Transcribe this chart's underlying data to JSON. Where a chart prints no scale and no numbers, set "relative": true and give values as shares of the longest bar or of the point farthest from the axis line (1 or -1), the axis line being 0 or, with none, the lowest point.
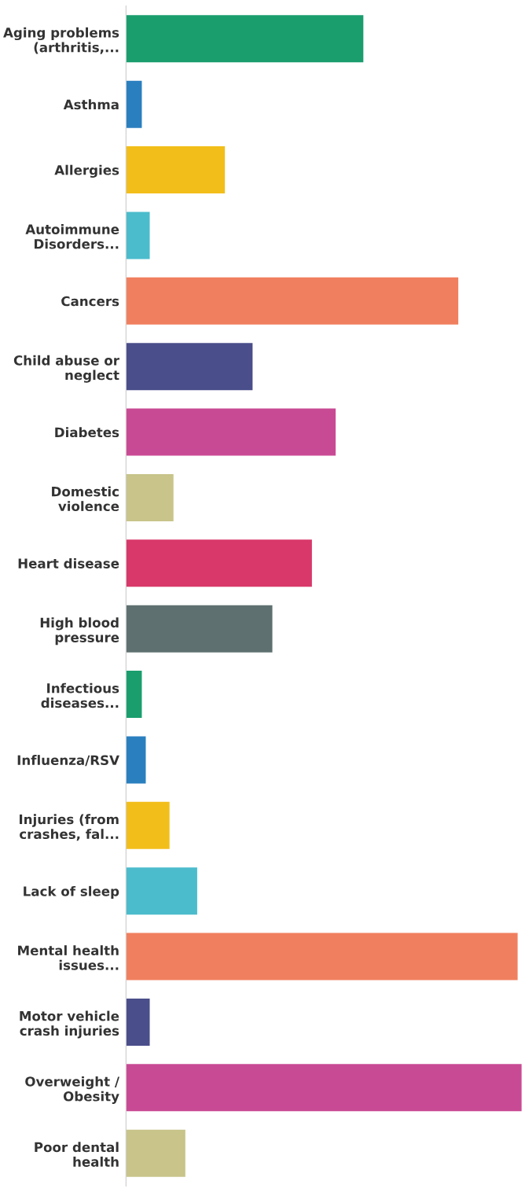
{
  "chart_data": {
    "type": "bar",
    "orientation": "horizontal",
    "relative": true,
    "categories": [
      "Aging problems\n(arthritis,...",
      "Asthma",
      "Allergies",
      "Autoimmune\nDisorders...",
      "Cancers",
      "Child abuse or\nneglect",
      "Diabetes",
      "Domestic\nviolence",
      "Heart disease",
      "High blood\npressure",
      "Infectious\ndiseases...",
      "Influenza/RSV",
      "Injuries (from\ncrashes, fal...",
      "Lack of sleep",
      "Mental health\nissues...",
      "Motor vehicle\ncrash injuries",
      "Overweight /\nObesity",
      "Poor dental\nhealth"
    ],
    "values": [
      0.6,
      0.04,
      0.25,
      0.06,
      0.84,
      0.32,
      0.53,
      0.12,
      0.47,
      0.37,
      0.04,
      0.05,
      0.11,
      0.18,
      0.99,
      0.06,
      1,
      0.15
    ],
    "colors": [
      "#1a9e6e",
      "#2a7fbf",
      "#f2be1a",
      "#4bbccc",
      "#f07f5f",
      "#4a4e8a",
      "#c94a94",
      "#c8c48a",
      "#d8386a",
      "#5f7070",
      "#1a9e6e",
      "#2a7fbf",
      "#f2be1a",
      "#4bbccc",
      "#f07f5f",
      "#4a4e8a",
      "#c94a94",
      "#c8c48a"
    ],
    "grid": false,
    "legend": false
  }
}
